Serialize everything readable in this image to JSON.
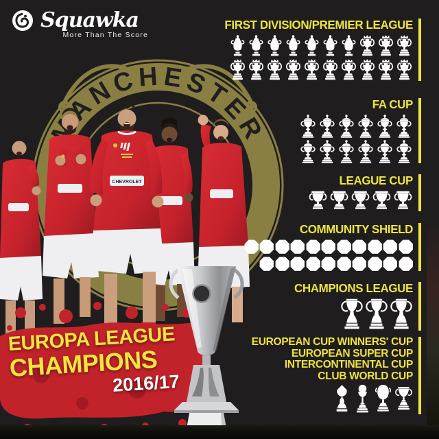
{
  "brand": {
    "name": "Squawka",
    "tagline": "More Than The Score"
  },
  "crest": {
    "arc_text": "MANCHESTER"
  },
  "photo": {
    "shirt_sponsor": "CHEVROLET"
  },
  "banner": {
    "line1": "EUROPA LEAGUE",
    "line2": "CHAMPIONS",
    "season": "2016/17"
  },
  "sections": [
    {
      "title": "FIRST DIVISION/PREMIER LEAGUE",
      "total": 20,
      "rows": [
        [
          {
            "icon": "first-division-trophy",
            "count": 7
          },
          {
            "icon": "premier-league-trophy",
            "count": 3
          }
        ],
        [
          {
            "icon": "premier-league-trophy",
            "count": 10
          }
        ]
      ]
    },
    {
      "title": "FA CUP",
      "total": 12,
      "rows": [
        [
          {
            "icon": "fa-cup-trophy",
            "count": 6
          }
        ],
        [
          {
            "icon": "fa-cup-trophy",
            "count": 6
          }
        ]
      ]
    },
    {
      "title": "LEAGUE CUP",
      "total": 5,
      "rows": [
        [
          {
            "icon": "league-cup-trophy",
            "count": 5
          }
        ]
      ]
    },
    {
      "title": "COMMUNITY SHIELD",
      "total": 21,
      "rows": [
        [
          {
            "icon": "community-shield",
            "count": 11
          }
        ],
        [
          {
            "icon": "community-shield",
            "count": 10
          }
        ]
      ]
    },
    {
      "title": "CHAMPIONS LEAGUE",
      "total": 3,
      "rows": [
        [
          {
            "icon": "champions-league-trophy",
            "count": 3
          }
        ]
      ]
    },
    {
      "titles": [
        "EUROPEAN CUP WINNERS' CUP",
        "EUROPEAN SUPER CUP",
        "INTERCONTINENTAL CUP",
        "CLUB WORLD CUP"
      ],
      "total": 4,
      "rows": [
        [
          {
            "icon": "club-world-cup-trophy",
            "count": 1
          },
          {
            "icon": "european-super-cup-trophy",
            "count": 1
          },
          {
            "icon": "intercontinental-cup-trophy",
            "count": 1
          },
          {
            "icon": "cup-winners-cup-trophy",
            "count": 1
          }
        ]
      ]
    }
  ],
  "chart_data": {
    "type": "bar",
    "variant": "pictogram-trophy-count",
    "categories": [
      "First Division/Premier League",
      "FA Cup",
      "League Cup",
      "Community Shield",
      "Champions League",
      "European Cup Winners' Cup",
      "European Super Cup",
      "Intercontinental Cup",
      "Club World Cup"
    ],
    "values": [
      20,
      12,
      5,
      21,
      3,
      1,
      1,
      1,
      1
    ],
    "title": "",
    "xlabel": "",
    "ylabel": "",
    "legend_position": "none",
    "grid": false
  },
  "colors": {
    "background": "#201d1e",
    "accent_yellow": "#ede43f",
    "trophy_white": "#ffffff",
    "crest_gold": "#8f8546",
    "splatter_red": "#c2232b",
    "season_text": "#ffffff"
  }
}
